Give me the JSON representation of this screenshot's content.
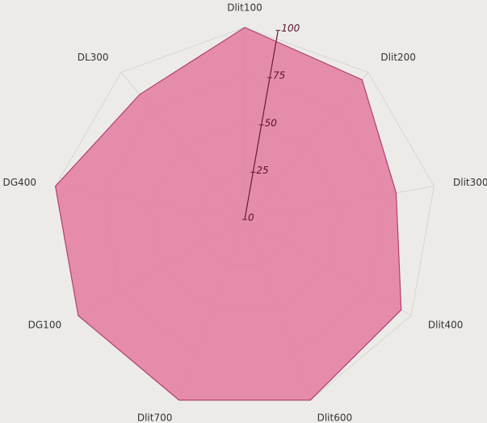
{
  "chart_data": {
    "type": "radar",
    "categories": [
      "Dlit100",
      "Dlit200",
      "Dlit300",
      "Dlit400",
      "Dlit600",
      "Dlit700",
      "DG100",
      "DG400",
      "DL300"
    ],
    "values": [
      100,
      95,
      80,
      94,
      100,
      100,
      100,
      100,
      85
    ],
    "color": "#e57ba0",
    "ylim": [
      0,
      100
    ],
    "yticks": [
      0,
      25,
      50,
      75,
      100
    ],
    "grid": true
  }
}
